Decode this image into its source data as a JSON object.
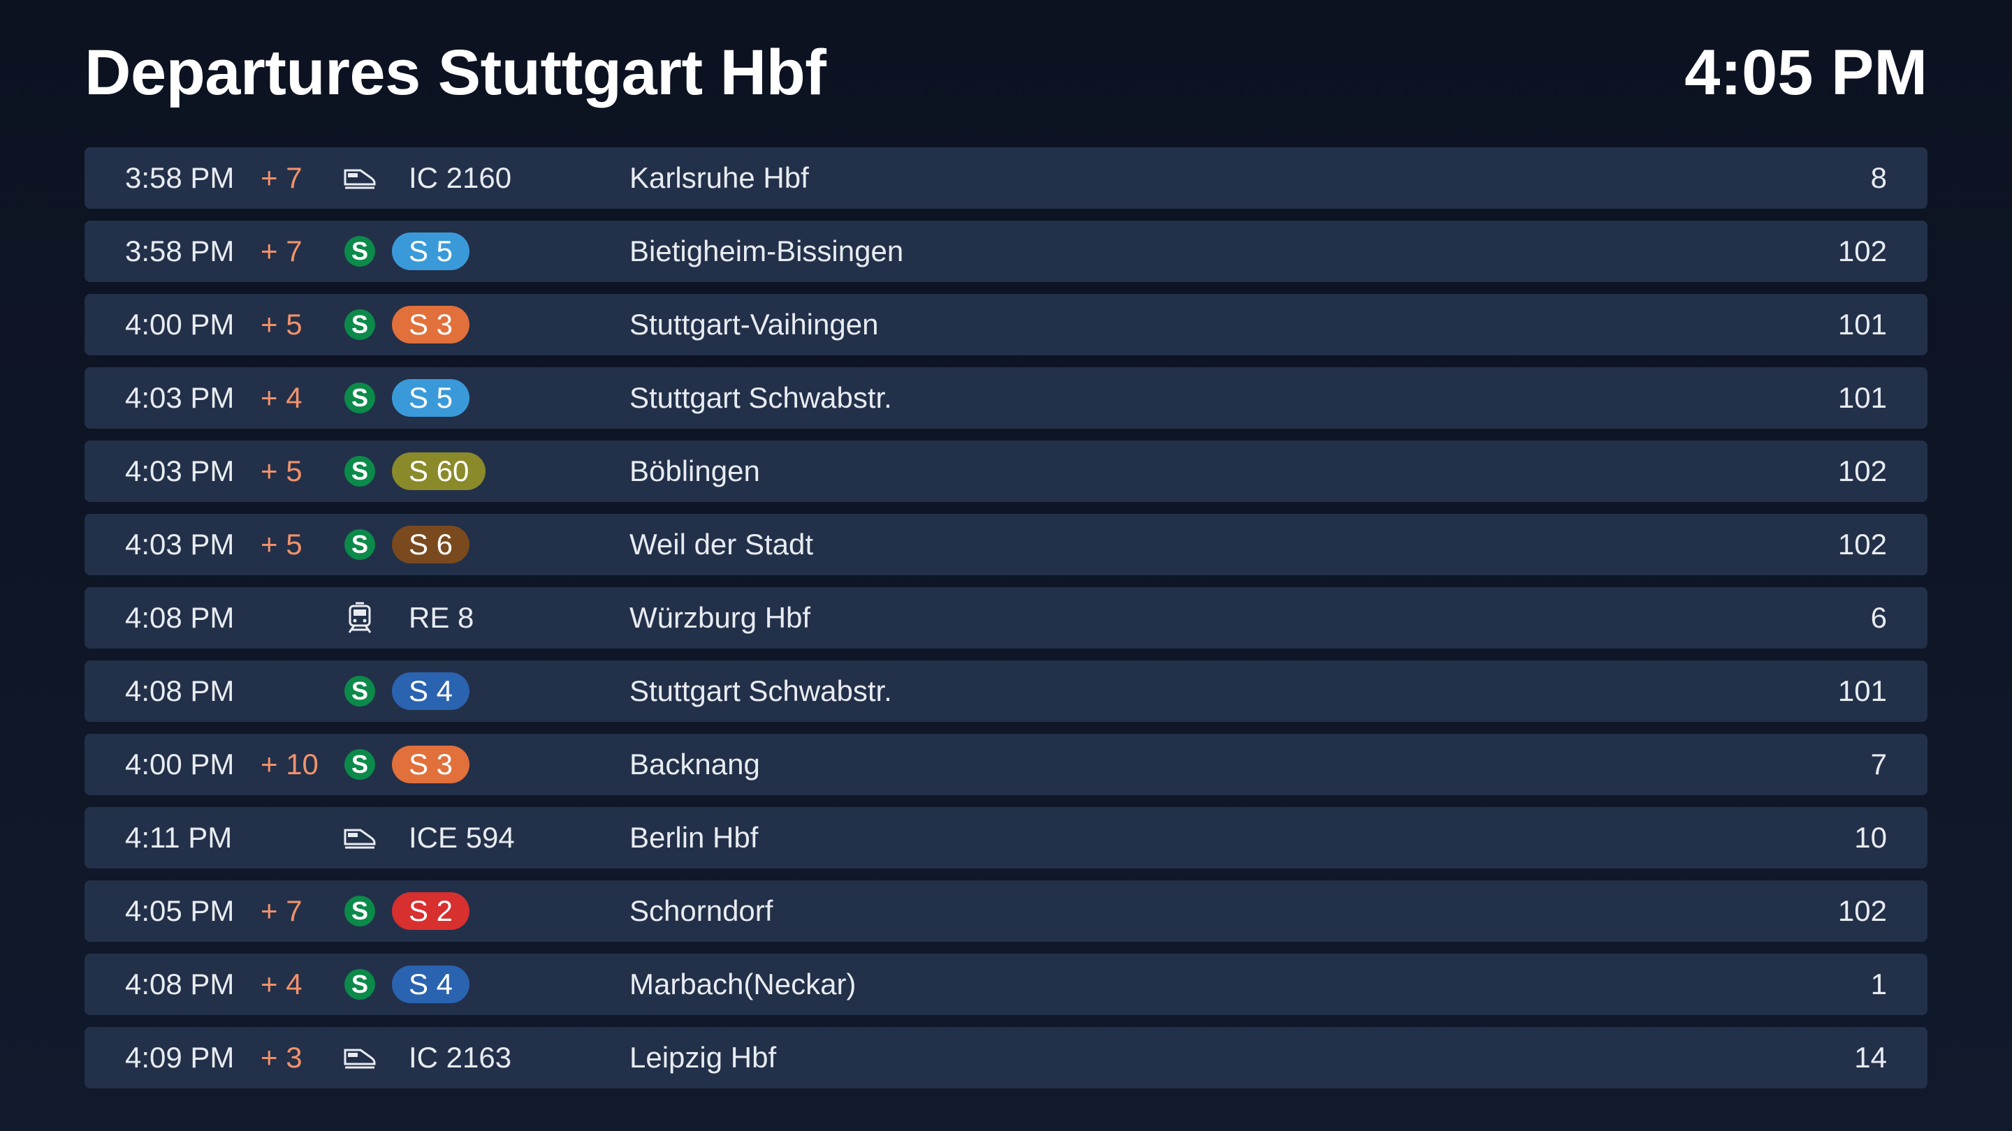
{
  "header": {
    "title": "Departures Stuttgart Hbf",
    "time": "4:05 PM"
  },
  "colors": {
    "delay": "#f0926b",
    "row_bg": "#233049",
    "sbahn_green": "#0b8a4a"
  },
  "departures": [
    {
      "time": "3:58 PM",
      "delay": "+ 7",
      "icon": "train-icon",
      "line": "IC 2160",
      "line_color": "",
      "destination": "Karlsruhe Hbf",
      "track": "8"
    },
    {
      "time": "3:58 PM",
      "delay": "+ 7",
      "icon": "sbahn-icon",
      "line": "S 5",
      "line_color": "#3a9ad9",
      "destination": "Bietigheim-Bissingen",
      "track": "102"
    },
    {
      "time": "4:00 PM",
      "delay": "+ 5",
      "icon": "sbahn-icon",
      "line": "S 3",
      "line_color": "#e2703a",
      "destination": "Stuttgart-Vaihingen",
      "track": "101"
    },
    {
      "time": "4:03 PM",
      "delay": "+ 4",
      "icon": "sbahn-icon",
      "line": "S 5",
      "line_color": "#3a9ad9",
      "destination": "Stuttgart Schwabstr.",
      "track": "101"
    },
    {
      "time": "4:03 PM",
      "delay": "+ 5",
      "icon": "sbahn-icon",
      "line": "S 60",
      "line_color": "#8a8a2a",
      "destination": "Böblingen",
      "track": "102"
    },
    {
      "time": "4:03 PM",
      "delay": "+ 5",
      "icon": "sbahn-icon",
      "line": "S 6",
      "line_color": "#7a4a1e",
      "destination": "Weil der Stadt",
      "track": "102"
    },
    {
      "time": "4:08 PM",
      "delay": "",
      "icon": "regional-train-icon",
      "line": "RE 8",
      "line_color": "",
      "destination": "Würzburg Hbf",
      "track": "6"
    },
    {
      "time": "4:08 PM",
      "delay": "",
      "icon": "sbahn-icon",
      "line": "S 4",
      "line_color": "#2a63b0",
      "destination": "Stuttgart Schwabstr.",
      "track": "101"
    },
    {
      "time": "4:00 PM",
      "delay": "+ 10",
      "icon": "sbahn-icon",
      "line": "S 3",
      "line_color": "#e2703a",
      "destination": "Backnang",
      "track": "7"
    },
    {
      "time": "4:11 PM",
      "delay": "",
      "icon": "train-icon",
      "line": "ICE 594",
      "line_color": "",
      "destination": "Berlin Hbf",
      "track": "10"
    },
    {
      "time": "4:05 PM",
      "delay": "+ 7",
      "icon": "sbahn-icon",
      "line": "S 2",
      "line_color": "#d82f2f",
      "destination": "Schorndorf",
      "track": "102"
    },
    {
      "time": "4:08 PM",
      "delay": "+ 4",
      "icon": "sbahn-icon",
      "line": "S 4",
      "line_color": "#2a63b0",
      "destination": "Marbach(Neckar)",
      "track": "1"
    },
    {
      "time": "4:09 PM",
      "delay": "+ 3",
      "icon": "train-icon",
      "line": "IC 2163",
      "line_color": "",
      "destination": "Leipzig Hbf",
      "track": "14"
    }
  ]
}
